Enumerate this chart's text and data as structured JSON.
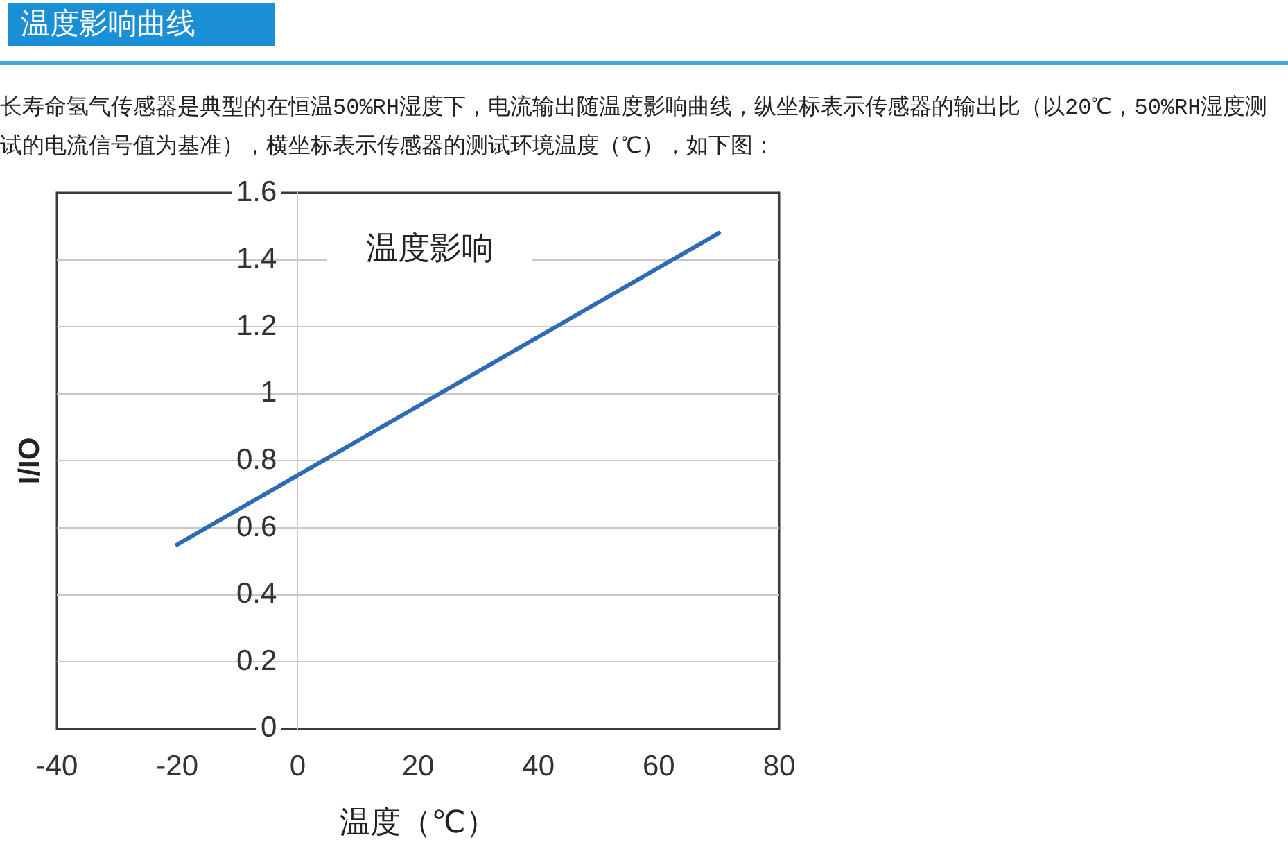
{
  "chart_data": {
    "type": "line",
    "title": "温度影响曲线",
    "subtitle": "长寿命氢气传感器是典型的在恒温50%RH湿度下，电流输出随温度影响曲线，纵坐标表示传感器的输出比（以20℃，50%RH湿度测试的电流信号值为基准），横坐标表示传感器的测试环境温度（℃），如下图：",
    "annotations": [
      "温度影响"
    ],
    "xlabel": "温度（℃）",
    "ylabel": "I/IO",
    "x": [
      -20,
      70
    ],
    "series": [
      {
        "color": "#2e6bb5",
        "values": [
          0.55,
          1.48
        ]
      }
    ],
    "xlim": [
      -40,
      80
    ],
    "xticks": [
      -40,
      -20,
      0,
      20,
      40,
      60,
      80
    ],
    "ylim": [
      0,
      1.6
    ],
    "yticks": [
      0,
      0.2,
      0.4,
      0.6,
      0.8,
      1,
      1.2,
      1.4,
      1.6
    ],
    "grid": "y",
    "legend": false,
    "marker": "none"
  }
}
